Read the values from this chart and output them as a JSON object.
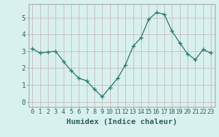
{
  "x": [
    0,
    1,
    2,
    3,
    4,
    5,
    6,
    7,
    8,
    9,
    10,
    11,
    12,
    13,
    14,
    15,
    16,
    17,
    18,
    19,
    20,
    21,
    22,
    23
  ],
  "y": [
    3.15,
    2.9,
    2.95,
    3.0,
    2.4,
    1.85,
    1.4,
    1.25,
    0.75,
    0.3,
    0.85,
    1.4,
    2.2,
    3.3,
    3.8,
    4.9,
    5.3,
    5.2,
    4.2,
    3.5,
    2.85,
    2.5,
    3.1,
    2.9
  ],
  "line_color": "#2d7d6e",
  "marker": "+",
  "bg_color": "#d8f0ee",
  "grid_color": "#c8b8b8",
  "xlabel": "Humidex (Indice chaleur)",
  "xlabel_fontsize": 8,
  "ylabel_ticks": [
    0,
    1,
    2,
    3,
    4,
    5
  ],
  "xlim": [
    -0.5,
    23.5
  ],
  "ylim": [
    -0.3,
    5.8
  ],
  "xtick_labels": [
    "0",
    "1",
    "2",
    "3",
    "4",
    "5",
    "6",
    "7",
    "8",
    "9",
    "10",
    "11",
    "12",
    "13",
    "14",
    "15",
    "16",
    "17",
    "18",
    "19",
    "20",
    "21",
    "22",
    "23"
  ],
  "tick_fontsize": 6.5,
  "figsize": [
    3.2,
    2.0
  ],
  "dpi": 100
}
